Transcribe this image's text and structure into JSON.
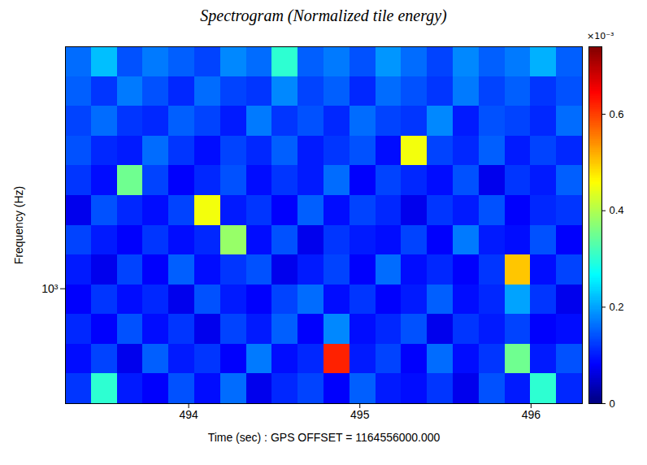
{
  "chart_data": {
    "type": "heatmap",
    "title": "Spectrogram (Normalized tile energy)",
    "x_label": "Time (sec) : GPS OFFSET = 1164556000.000",
    "y_label": "Frequency (Hz)",
    "xlim": [
      493.28,
      496.3
    ],
    "xticks": [
      494,
      495,
      496
    ],
    "ylim": [
      512,
      4096
    ],
    "yticks": [
      {
        "value": 1000,
        "label": "10³"
      }
    ],
    "log": "y",
    "color": "jet",
    "x_bins": [
      493.28,
      493.431,
      493.582,
      493.733,
      493.884,
      494.035,
      494.186,
      494.337,
      494.488,
      494.639,
      494.79,
      494.941,
      495.092,
      495.243,
      495.394,
      495.545,
      495.696,
      495.847,
      495.998,
      496.149,
      496.3
    ],
    "y_bins": [
      512,
      609,
      724,
      861,
      1024,
      1218,
      1448,
      1722,
      2048,
      2435,
      2896,
      3444,
      4096
    ],
    "z": [
      [
        0.12,
        0.3,
        0.1,
        0.08,
        0.14,
        0.09,
        0.16,
        0.07,
        0.11,
        0.13,
        0.08,
        0.15,
        0.1,
        0.09,
        0.12,
        0.07,
        0.14,
        0.1,
        0.3,
        0.11
      ],
      [
        0.09,
        0.13,
        0.07,
        0.15,
        0.1,
        0.12,
        0.08,
        0.17,
        0.09,
        0.11,
        0.62,
        0.1,
        0.13,
        0.08,
        0.16,
        0.09,
        0.12,
        0.35,
        0.1,
        0.14
      ],
      [
        0.11,
        0.08,
        0.14,
        0.09,
        0.12,
        0.07,
        0.13,
        0.1,
        0.15,
        0.08,
        0.18,
        0.09,
        0.11,
        0.14,
        0.07,
        0.12,
        0.1,
        0.13,
        0.08,
        0.09
      ],
      [
        0.08,
        0.12,
        0.09,
        0.11,
        0.07,
        0.14,
        0.1,
        0.08,
        0.13,
        0.16,
        0.09,
        0.12,
        0.08,
        0.1,
        0.15,
        0.09,
        0.11,
        0.2,
        0.12,
        0.07
      ],
      [
        0.1,
        0.07,
        0.13,
        0.08,
        0.15,
        0.09,
        0.12,
        0.14,
        0.07,
        0.1,
        0.13,
        0.08,
        0.16,
        0.09,
        0.11,
        0.08,
        0.12,
        0.5,
        0.09,
        0.13
      ],
      [
        0.13,
        0.1,
        0.08,
        0.12,
        0.09,
        0.11,
        0.38,
        0.09,
        0.14,
        0.07,
        0.12,
        0.1,
        0.09,
        0.13,
        0.08,
        0.17,
        0.1,
        0.09,
        0.14,
        0.08
      ],
      [
        0.07,
        0.14,
        0.11,
        0.09,
        0.13,
        0.45,
        0.1,
        0.12,
        0.08,
        0.15,
        0.09,
        0.13,
        0.11,
        0.07,
        0.12,
        0.1,
        0.14,
        0.08,
        0.11,
        0.12
      ],
      [
        0.12,
        0.09,
        0.35,
        0.13,
        0.08,
        0.11,
        0.14,
        0.09,
        0.12,
        0.1,
        0.16,
        0.08,
        0.13,
        0.11,
        0.09,
        0.14,
        0.07,
        0.12,
        0.1,
        0.15
      ],
      [
        0.14,
        0.11,
        0.1,
        0.16,
        0.12,
        0.09,
        0.13,
        0.11,
        0.15,
        0.1,
        0.12,
        0.14,
        0.09,
        0.45,
        0.13,
        0.11,
        0.15,
        0.1,
        0.13,
        0.11
      ],
      [
        0.13,
        0.16,
        0.12,
        0.11,
        0.15,
        0.13,
        0.1,
        0.17,
        0.12,
        0.14,
        0.11,
        0.16,
        0.13,
        0.12,
        0.18,
        0.1,
        0.14,
        0.13,
        0.11,
        0.16
      ],
      [
        0.15,
        0.12,
        0.17,
        0.14,
        0.11,
        0.16,
        0.13,
        0.12,
        0.18,
        0.13,
        0.15,
        0.11,
        0.16,
        0.14,
        0.12,
        0.17,
        0.13,
        0.15,
        0.12,
        0.14
      ],
      [
        0.16,
        0.22,
        0.14,
        0.17,
        0.15,
        0.13,
        0.18,
        0.16,
        0.3,
        0.15,
        0.17,
        0.14,
        0.19,
        0.16,
        0.13,
        0.18,
        0.15,
        0.17,
        0.21,
        0.15
      ]
    ],
    "colorbar": {
      "range": [
        0,
        0.74
      ],
      "ticks": [
        0,
        0.2,
        0.4,
        0.6
      ],
      "label": "×10⁻³"
    }
  }
}
